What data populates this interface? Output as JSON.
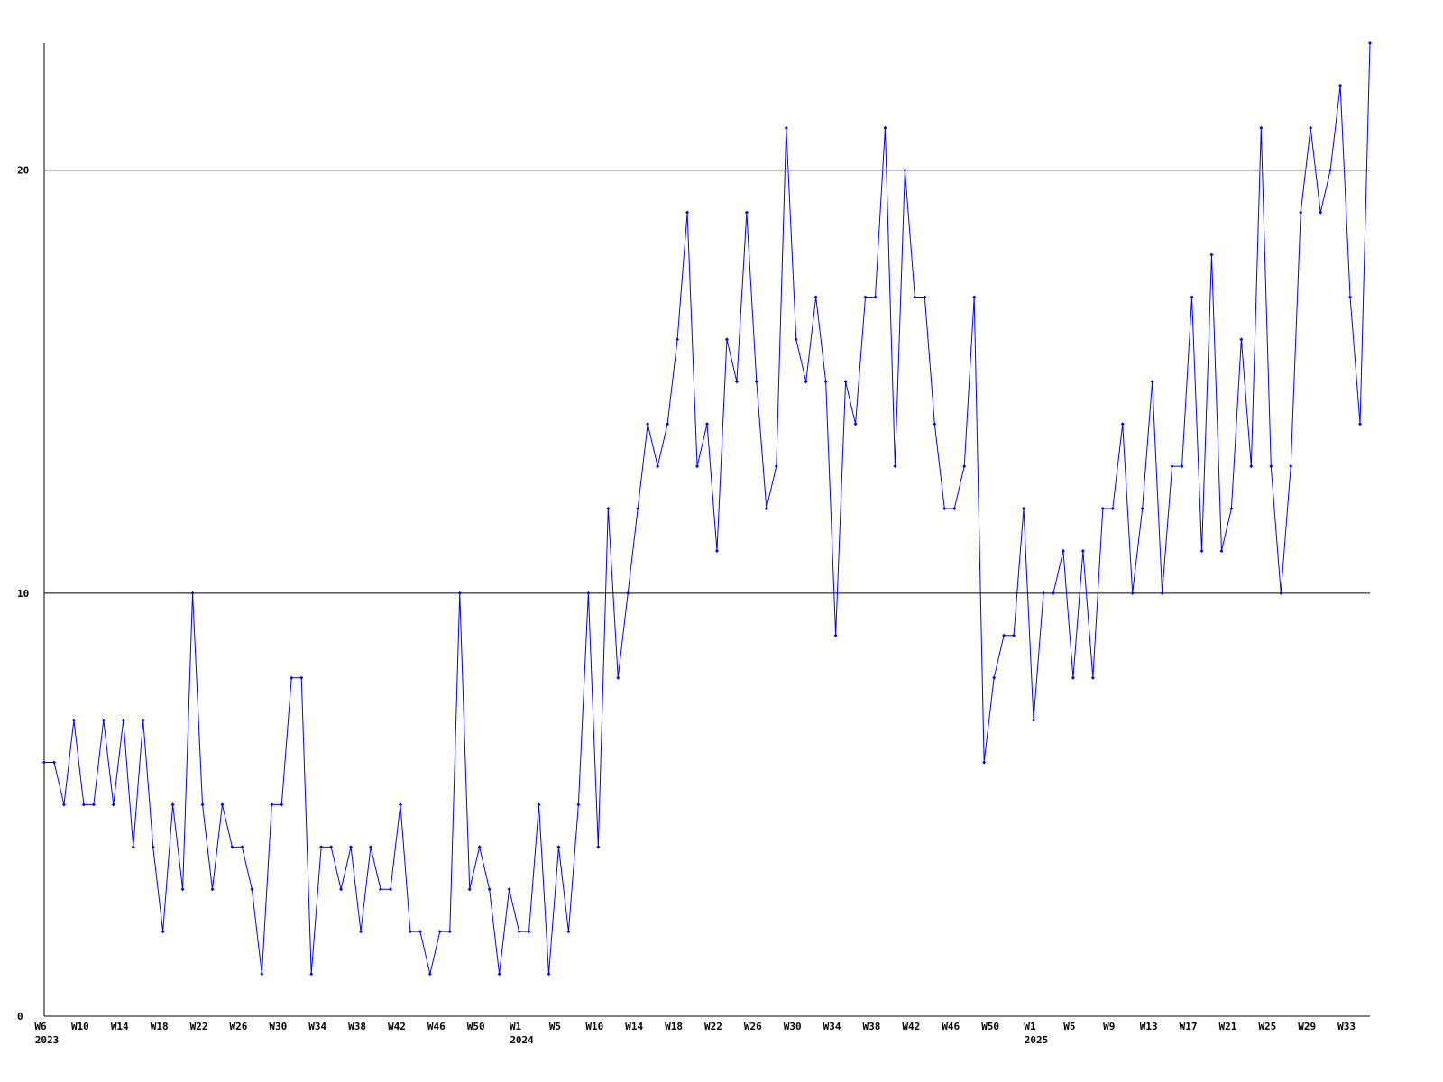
{
  "chart_data": {
    "type": "line",
    "categories": [
      "W6",
      null,
      null,
      null,
      "W10",
      null,
      null,
      null,
      "W14",
      null,
      null,
      null,
      "W18",
      null,
      null,
      null,
      "W22",
      null,
      null,
      null,
      "W26",
      null,
      null,
      null,
      "W30",
      null,
      null,
      null,
      "W34",
      null,
      null,
      null,
      "W38",
      null,
      null,
      null,
      "W42",
      null,
      null,
      null,
      "W46",
      null,
      null,
      null,
      "W50",
      null,
      null,
      null,
      "W1",
      null,
      null,
      null,
      "W5",
      null,
      null,
      null,
      "W10",
      null,
      null,
      null,
      "W14",
      null,
      null,
      null,
      "W18",
      null,
      null,
      null,
      "W22",
      null,
      null,
      null,
      "W26",
      null,
      null,
      null,
      "W30",
      null,
      null,
      null,
      "W34",
      null,
      null,
      null,
      "W38",
      null,
      null,
      null,
      "W42",
      null,
      null,
      null,
      "W46",
      null,
      null,
      null,
      "W50",
      null,
      null,
      null,
      "W1",
      null,
      null,
      null,
      "W5",
      null,
      null,
      null,
      "W9",
      null,
      null,
      null,
      "W13",
      null,
      null,
      null,
      "W17",
      null,
      null,
      null,
      "W21",
      null,
      null,
      null,
      "W25",
      null,
      null,
      null,
      "W29",
      null,
      null,
      null,
      "W33",
      null,
      null
    ],
    "category_years": [
      "2023",
      null,
      null,
      null,
      null,
      null,
      null,
      null,
      null,
      null,
      null,
      null,
      null,
      null,
      null,
      null,
      null,
      null,
      null,
      null,
      null,
      null,
      null,
      null,
      null,
      null,
      null,
      null,
      null,
      null,
      null,
      null,
      null,
      null,
      null,
      null,
      null,
      null,
      null,
      null,
      null,
      null,
      null,
      null,
      null,
      null,
      null,
      null,
      "2024",
      null,
      null,
      null,
      null,
      null,
      null,
      null,
      null,
      null,
      null,
      null,
      null,
      null,
      null,
      null,
      null,
      null,
      null,
      null,
      null,
      null,
      null,
      null,
      null,
      null,
      null,
      null,
      null,
      null,
      null,
      null,
      null,
      null,
      null,
      null,
      null,
      null,
      null,
      null,
      null,
      null,
      null,
      null,
      null,
      null,
      null,
      null,
      null,
      null,
      null,
      null,
      "2025",
      null,
      null,
      null,
      null,
      null,
      null,
      null,
      null,
      null,
      null,
      null,
      null,
      null,
      null,
      null,
      null,
      null,
      null,
      null,
      null,
      null,
      null,
      null,
      null,
      null,
      null,
      null,
      null,
      null,
      null,
      null,
      null,
      null,
      null
    ],
    "series": [
      {
        "color": "#0000ff",
        "values": [
          6,
          6,
          5,
          7,
          5,
          5,
          7,
          5,
          7,
          4,
          7,
          4,
          2,
          5,
          3,
          10,
          5,
          3,
          5,
          4,
          4,
          3,
          1,
          5,
          5,
          8,
          8,
          1,
          4,
          4,
          3,
          4,
          2,
          4,
          3,
          3,
          5,
          2,
          2,
          1,
          2,
          2,
          10,
          3,
          4,
          3,
          1,
          3,
          2,
          2,
          5,
          1,
          4,
          2,
          5,
          10,
          4,
          12,
          8,
          10,
          12,
          14,
          13,
          14,
          16,
          19,
          13,
          14,
          11,
          16,
          15,
          19,
          15,
          12,
          13,
          21,
          16,
          15,
          17,
          15,
          9,
          15,
          14,
          17,
          17,
          21,
          13,
          20,
          17,
          17,
          14,
          12,
          12,
          13,
          17,
          6,
          8,
          9,
          9,
          12,
          7,
          10,
          10,
          11,
          8,
          11,
          8,
          12,
          12,
          14,
          10,
          12,
          15,
          10,
          13,
          13,
          17,
          11,
          18,
          11,
          12,
          16,
          13,
          21,
          13,
          10,
          13,
          19,
          21,
          19,
          20,
          22,
          17,
          14,
          23
        ]
      }
    ],
    "ylim": [
      0,
      23
    ],
    "yticks": [
      0,
      10,
      20
    ],
    "grid": true
  }
}
